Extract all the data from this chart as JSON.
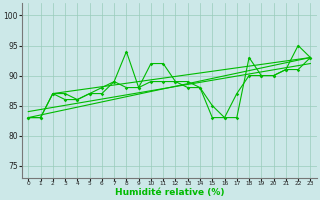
{
  "x": [
    0,
    1,
    2,
    3,
    4,
    5,
    6,
    7,
    8,
    9,
    10,
    11,
    12,
    13,
    14,
    15,
    16,
    17,
    18,
    19,
    20,
    21,
    22,
    23
  ],
  "s1": [
    83,
    83,
    87,
    87,
    86,
    87,
    87,
    89,
    94,
    88,
    92,
    92,
    89,
    89,
    88,
    85,
    83,
    83,
    93,
    90,
    90,
    91,
    95,
    93
  ],
  "s2": [
    83,
    83,
    87,
    86,
    86,
    87,
    88,
    89,
    88,
    88,
    89,
    89,
    89,
    88,
    88,
    83,
    83,
    87,
    90,
    90,
    90,
    91,
    91,
    93
  ],
  "trend1_x": [
    0,
    23
  ],
  "trend1_y": [
    83,
    93
  ],
  "trend2_x": [
    0,
    23
  ],
  "trend2_y": [
    84,
    92
  ],
  "trend3_x": [
    2,
    23
  ],
  "trend3_y": [
    87,
    93
  ],
  "line_color": "#00bb00",
  "bg_color": "#cce8e8",
  "grid_color": "#99ccbb",
  "xlabel": "Humidité relative (%)",
  "yticks": [
    75,
    80,
    85,
    90,
    95,
    100
  ],
  "xlim": [
    -0.5,
    23.5
  ],
  "ylim": [
    73,
    102
  ]
}
